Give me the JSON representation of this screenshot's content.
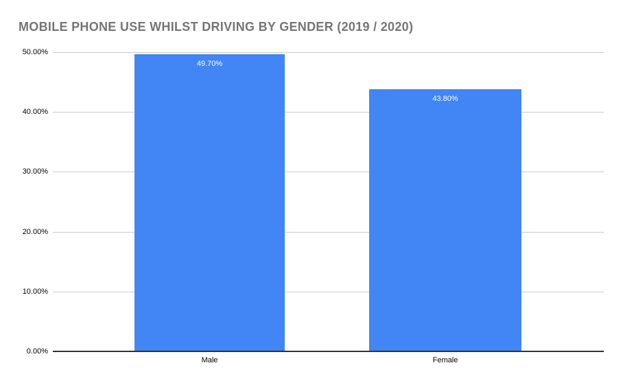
{
  "chart_data": {
    "type": "bar",
    "title": "MOBILE PHONE USE WHILST DRIVING BY GENDER (2019 / 2020)",
    "categories": [
      "Male",
      "Female"
    ],
    "values": [
      49.7,
      43.8
    ],
    "value_labels": [
      "49.70%",
      "43.80%"
    ],
    "xlabel": "",
    "ylabel": "",
    "ylim": [
      0,
      50
    ],
    "ytick_interval": 10,
    "ytick_labels": [
      "0.00%",
      "10.00%",
      "20.00%",
      "30.00%",
      "40.00%",
      "50.00%"
    ],
    "grid": "horizontal",
    "legend": "none"
  },
  "colors": {
    "bar": "#4285f4",
    "title_text": "#757575",
    "gridline": "#cccccc",
    "axis_line": "#333333",
    "tick_text": "#000000",
    "bar_label_text": "#ffffff",
    "background": "#ffffff"
  }
}
